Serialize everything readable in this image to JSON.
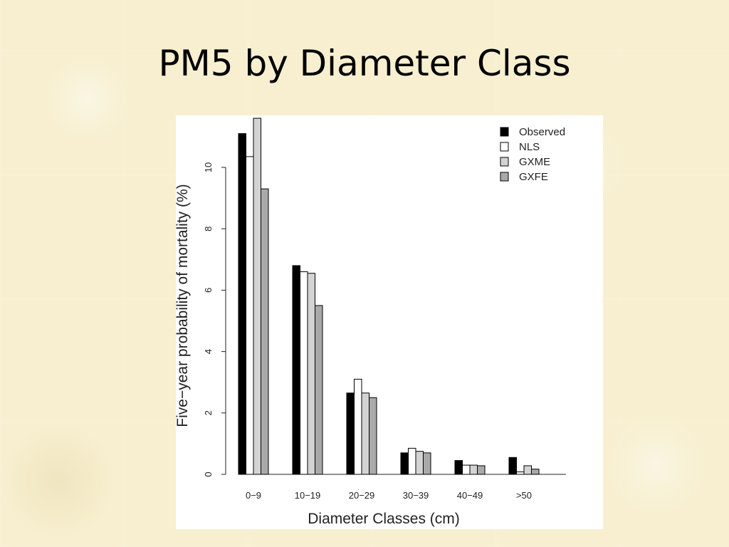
{
  "slide": {
    "title": "PM5 by Diameter Class"
  },
  "chart_data": {
    "type": "bar",
    "title": "",
    "xlabel": "Diameter Classes (cm)",
    "ylabel": "Five−year probability of mortality (%)",
    "ylim": [
      0,
      11.6
    ],
    "yticks": [
      0,
      2,
      4,
      6,
      8,
      10
    ],
    "grid": false,
    "legend_position": "top-right",
    "categories": [
      "0−9",
      "10−19",
      "20−29",
      "30−39",
      "40−49",
      ">50"
    ],
    "series": [
      {
        "name": "Observed",
        "color": "#000000",
        "values": [
          11.1,
          6.8,
          2.65,
          0.7,
          0.45,
          0.55
        ]
      },
      {
        "name": "NLS",
        "color": "#ffffff",
        "values": [
          10.35,
          6.6,
          3.1,
          0.85,
          0.3,
          0.08
        ]
      },
      {
        "name": "GXME",
        "color": "#d3d3d3",
        "values": [
          11.6,
          6.55,
          2.65,
          0.75,
          0.3,
          0.28
        ]
      },
      {
        "name": "GXFE",
        "color": "#a9a9a9",
        "values": [
          9.3,
          5.5,
          2.5,
          0.7,
          0.28,
          0.17
        ]
      }
    ]
  }
}
